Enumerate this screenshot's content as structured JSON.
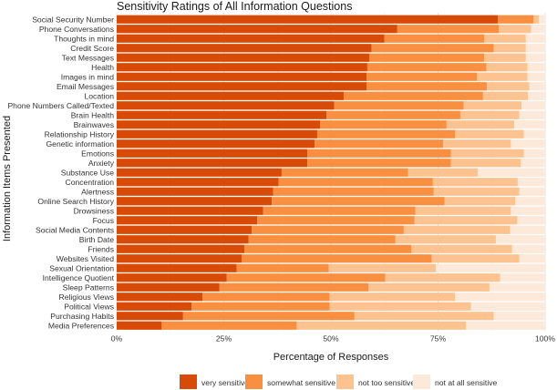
{
  "chart_data": {
    "type": "bar",
    "orientation": "horizontal",
    "stacked": true,
    "title": "Sensitivity Ratings of All Information Questions",
    "xlabel": "Percentage of Responses",
    "ylabel": "Information Items Presented",
    "xlim": [
      0,
      100
    ],
    "xticks": [
      "0%",
      "25%",
      "50%",
      "75%",
      "100%"
    ],
    "grid": true,
    "legend_position": "bottom",
    "categories": [
      "Social Security Number",
      "Phone Conversations",
      "Thoughts in mind",
      "Credit Score",
      "Text Messages",
      "Health",
      "Images in mind",
      "Email Messages",
      "Location",
      "Phone Numbers Called/Texted",
      "Brain Health",
      "Brainwaves",
      "Relationship History",
      "Genetic information",
      "Emotions",
      "Anxiety",
      "Substance Use",
      "Concentration",
      "Alertness",
      "Online Search History",
      "Drowsiness",
      "Focus",
      "Social Media Contents",
      "Birth Date",
      "Friends",
      "Websites Visited",
      "Sexual Orientation",
      "Intelligence Quotient",
      "Sleep Patterns",
      "Religious Views",
      "Political Views",
      "Purchasing Habits",
      "Media Preferences"
    ],
    "series": [
      {
        "name": "very sensitive",
        "color": "#d84a07",
        "values": [
          89,
          65.5,
          62.5,
          59.5,
          59,
          58.5,
          58.3,
          58.3,
          53,
          50.8,
          49,
          47.5,
          46.8,
          46.2,
          44.5,
          44.5,
          38.5,
          37.8,
          36.5,
          36.2,
          34.2,
          32.8,
          31.5,
          30.8,
          29.8,
          29.2,
          28,
          25.7,
          24,
          20,
          17.5,
          15.5,
          10.5
        ]
      },
      {
        "name": "somewhat sensitive",
        "color": "#f98f40",
        "values": [
          8.3,
          23.7,
          23.3,
          28.5,
          26.8,
          27.8,
          25.8,
          28.1,
          32.5,
          30.2,
          31.2,
          29.5,
          32.2,
          30,
          33.5,
          33.5,
          29.5,
          36,
          37.5,
          40.3,
          35.5,
          36.7,
          35.5,
          34.2,
          39,
          44.3,
          21.5,
          37,
          34.8,
          29.7,
          32.2,
          40,
          31.5
        ]
      },
      {
        "name": "not too sensitive",
        "color": "#fcc391",
        "values": [
          1.2,
          7.5,
          9.7,
          7.5,
          9.7,
          9.6,
          11.8,
          9.9,
          10.5,
          13.5,
          13.8,
          15.8,
          16,
          15.8,
          17,
          16.3,
          16.3,
          19.8,
          20,
          16.5,
          22.3,
          24,
          24.8,
          23.5,
          23.5,
          20.5,
          25,
          26.8,
          28.2,
          29.3,
          33,
          32.5,
          39.5
        ]
      },
      {
        "name": "not at all sensitive",
        "color": "#fde9d9",
        "values": [
          1.5,
          3.3,
          4.5,
          4.5,
          4.5,
          4.1,
          4.1,
          3.7,
          4,
          5.5,
          6,
          7.2,
          5,
          8,
          5,
          5.7,
          15.7,
          6.4,
          6,
          7,
          8,
          6.5,
          8.2,
          11.5,
          7.7,
          6,
          25.5,
          10.5,
          13,
          21,
          17.3,
          12,
          18.5
        ]
      }
    ]
  }
}
